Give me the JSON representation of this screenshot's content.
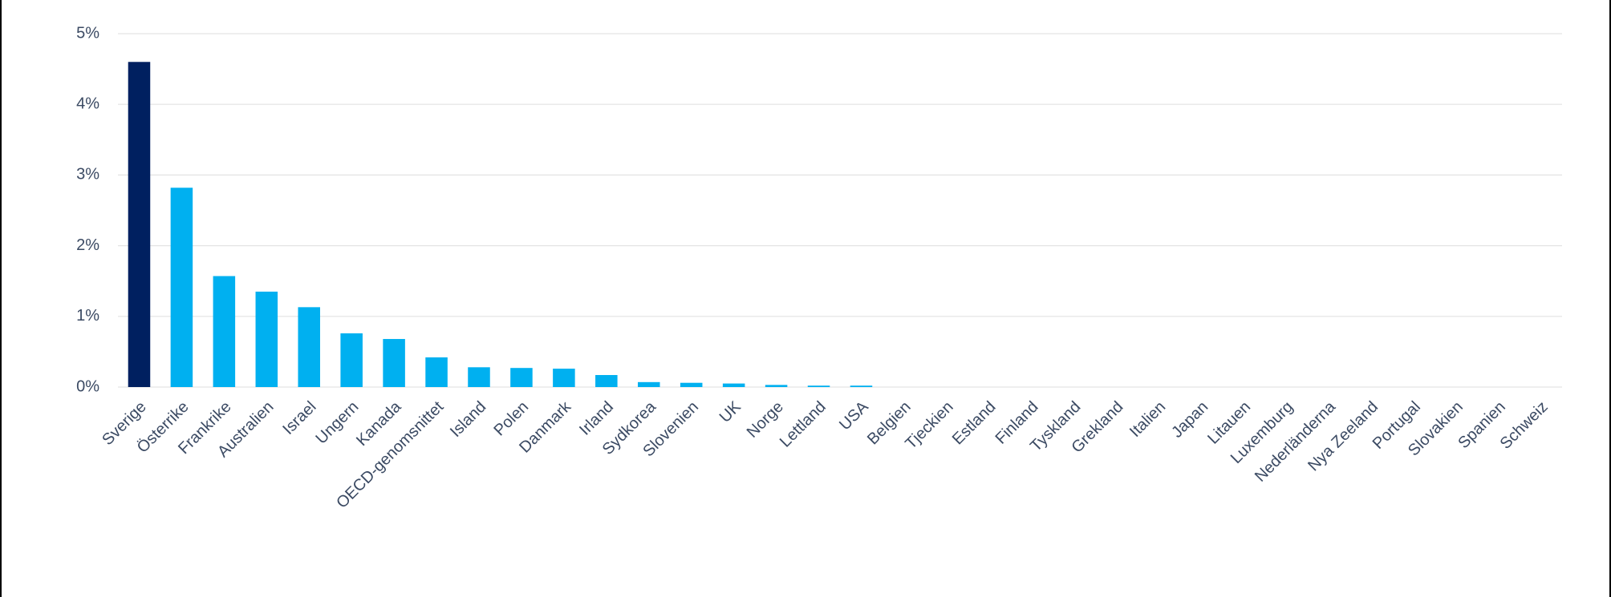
{
  "chart_data": {
    "type": "bar",
    "categories": [
      "Sverige",
      "Österrike",
      "Frankrike",
      "Australien",
      "Israel",
      "Ungern",
      "Kanada",
      "OECD-genomsnittet",
      "Island",
      "Polen",
      "Danmark",
      "Irland",
      "Sydkorea",
      "Slovenien",
      "UK",
      "Norge",
      "Lettland",
      "USA",
      "Belgien",
      "Tjeckien",
      "Estland",
      "Finland",
      "Tyskland",
      "Grekland",
      "Italien",
      "Japan",
      "Litauen",
      "Luxemburg",
      "Nederländerna",
      "Nya Zeeland",
      "Portugal",
      "Slovakien",
      "Spanien",
      "Schweiz"
    ],
    "values": [
      4.6,
      2.82,
      1.57,
      1.35,
      1.13,
      0.76,
      0.68,
      0.42,
      0.28,
      0.27,
      0.26,
      0.17,
      0.07,
      0.06,
      0.05,
      0.03,
      0.02,
      0.02,
      0,
      0,
      0,
      0,
      0,
      0,
      0,
      0,
      0,
      0,
      0,
      0,
      0,
      0,
      0,
      0
    ],
    "colors": [
      "#002060",
      "#00b0f0",
      "#00b0f0",
      "#00b0f0",
      "#00b0f0",
      "#00b0f0",
      "#00b0f0",
      "#00b0f0",
      "#00b0f0",
      "#00b0f0",
      "#00b0f0",
      "#00b0f0",
      "#00b0f0",
      "#00b0f0",
      "#00b0f0",
      "#00b0f0",
      "#00b0f0",
      "#00b0f0",
      "#00b0f0",
      "#00b0f0",
      "#00b0f0",
      "#00b0f0",
      "#00b0f0",
      "#00b0f0",
      "#00b0f0",
      "#00b0f0",
      "#00b0f0",
      "#00b0f0",
      "#00b0f0",
      "#00b0f0",
      "#00b0f0",
      "#00b0f0",
      "#00b0f0",
      "#00b0f0"
    ],
    "ylim": [
      0,
      5
    ],
    "yticks": [
      {
        "value": 0,
        "label": "0%"
      },
      {
        "value": 1,
        "label": "1%"
      },
      {
        "value": 2,
        "label": "2%"
      },
      {
        "value": 3,
        "label": "3%"
      },
      {
        "value": 4,
        "label": "4%"
      },
      {
        "value": 5,
        "label": "5%"
      }
    ],
    "grid": true
  }
}
